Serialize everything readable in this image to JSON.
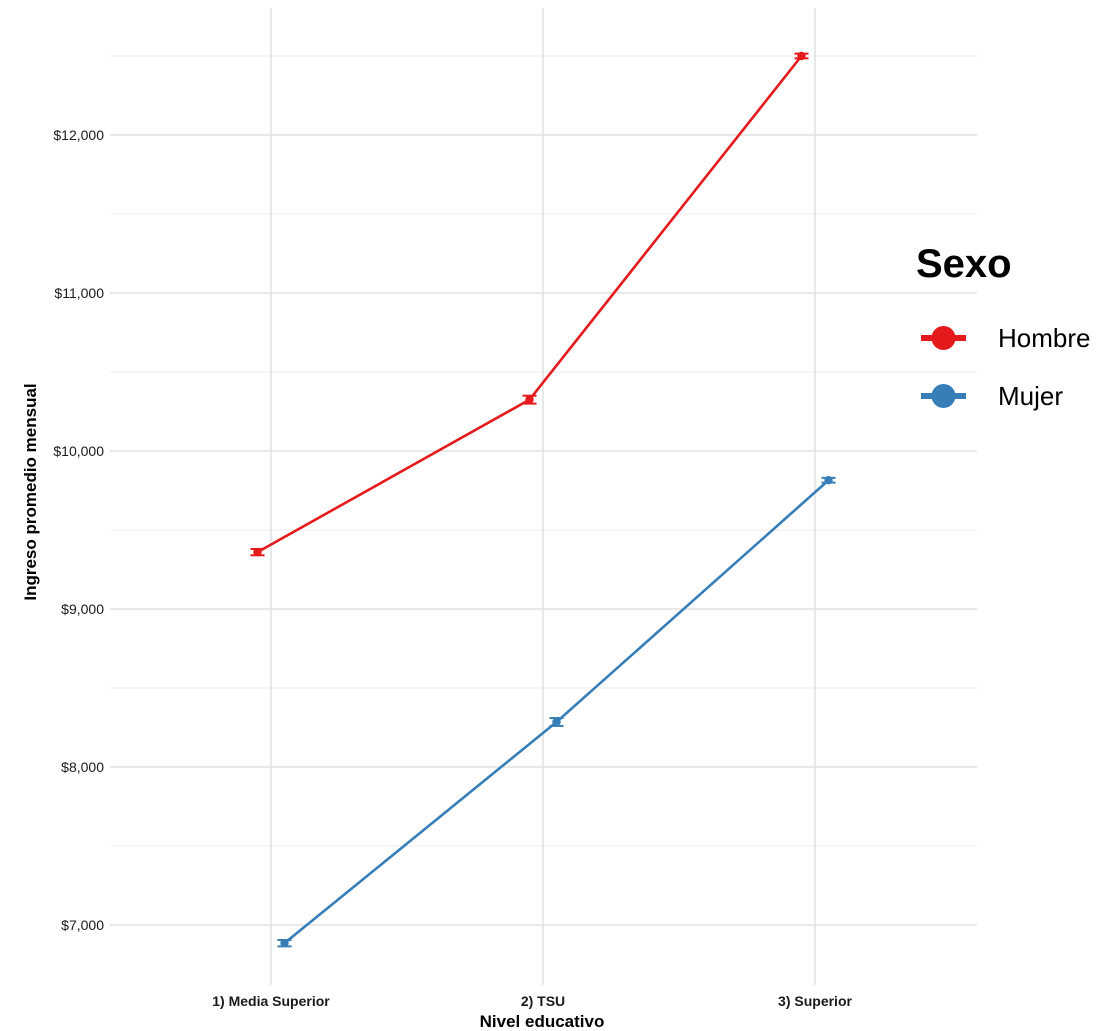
{
  "chart_data": {
    "type": "line",
    "title": "",
    "xlabel": "Nivel educativo",
    "ylabel": "Ingreso promedio mensual",
    "categories": [
      "1) Media Superior",
      "2) TSU",
      "3) Superior"
    ],
    "ylim": [
      6600,
      12800
    ],
    "yticks": [
      7000,
      8000,
      9000,
      10000,
      11000,
      12000
    ],
    "ytick_labels": [
      "$7,000",
      "$8,000",
      "$9,000",
      "$10,000",
      "$11,000",
      "$12,000"
    ],
    "grid": true,
    "legend": {
      "title": "Sexo",
      "position": "right"
    },
    "series": [
      {
        "name": "Hombre",
        "color": "#e41a1c",
        "values": [
          9360,
          10325,
          12500
        ],
        "error": [
          20,
          25,
          15
        ]
      },
      {
        "name": "Mujer",
        "color": "#377eb8",
        "values": [
          6885,
          8285,
          9815
        ],
        "error": [
          20,
          25,
          15
        ]
      }
    ]
  }
}
